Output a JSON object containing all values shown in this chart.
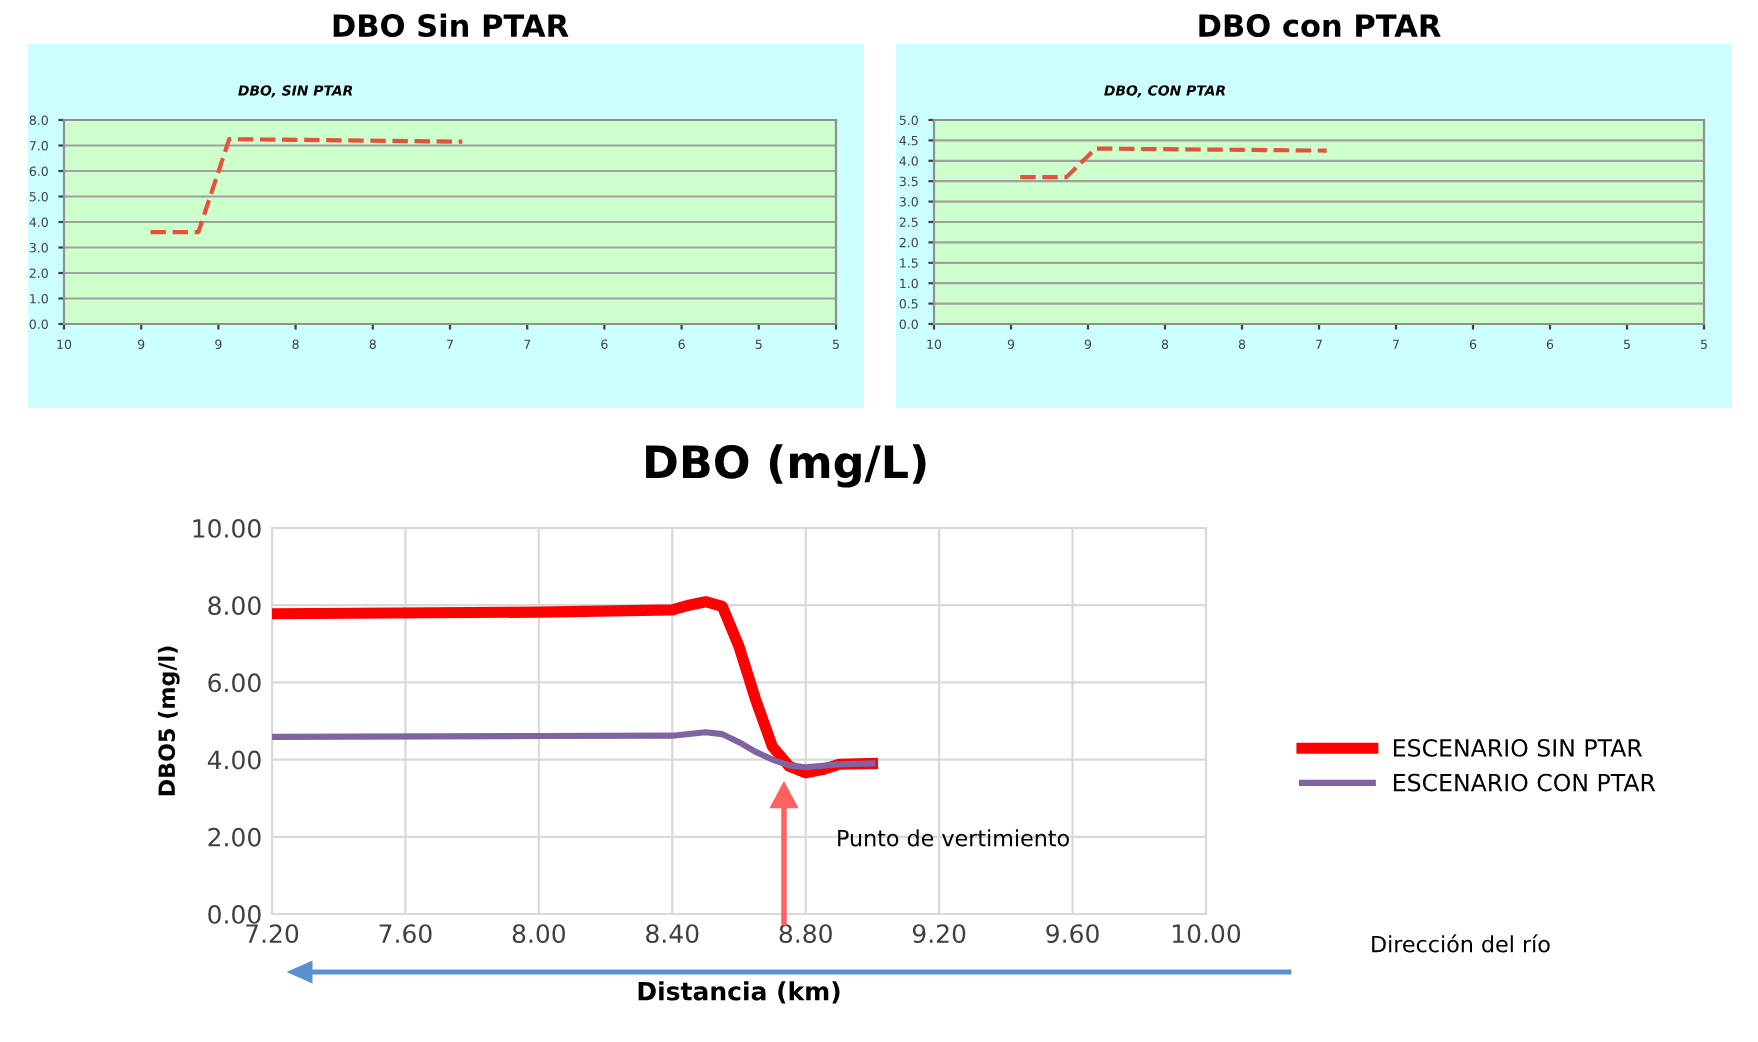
{
  "chart_data": [
    {
      "type": "line",
      "title": "DBO Sin PTAR",
      "subtitle": "DBO, SIN PTAR",
      "x": [
        9.44,
        9.13,
        8.93,
        7.42
      ],
      "series": [
        {
          "color": "#e8503a",
          "values": [
            3.6,
            3.6,
            7.25,
            7.15
          ]
        }
      ],
      "line_style": "dashed",
      "xlim": [
        10,
        5
      ],
      "xticks": [
        10,
        {
          "value": 9.5,
          "label": "9"
        },
        9,
        {
          "value": 8.5,
          "label": "8"
        },
        8,
        {
          "value": 7.5,
          "label": "7"
        },
        7,
        {
          "value": 6.5,
          "label": "6"
        },
        6,
        {
          "value": 5.5,
          "label": "5"
        },
        5
      ],
      "ylim": [
        0,
        8
      ],
      "yticks": [
        {
          "value": 0,
          "label": "0.0"
        },
        {
          "value": 1,
          "label": "1.0"
        },
        {
          "value": 2,
          "label": "2.0"
        },
        {
          "value": 3,
          "label": "3.0"
        },
        {
          "value": 4,
          "label": "4.0"
        },
        {
          "value": 5,
          "label": "5.0"
        },
        {
          "value": 6,
          "label": "6.0"
        },
        {
          "value": 7,
          "label": "7.0"
        },
        {
          "value": 8,
          "label": "8.0"
        }
      ],
      "grid": "y"
    },
    {
      "type": "line",
      "title": "DBO con PTAR",
      "subtitle": "DBO, CON PTAR",
      "x": [
        9.44,
        9.14,
        8.95,
        7.45
      ],
      "series": [
        {
          "color": "#e8503a",
          "values": [
            3.6,
            3.6,
            4.3,
            4.25
          ]
        }
      ],
      "line_style": "dashed",
      "xlim": [
        10,
        5
      ],
      "xticks": [
        10,
        {
          "value": 9.5,
          "label": "9"
        },
        9,
        {
          "value": 8.5,
          "label": "8"
        },
        8,
        {
          "value": 7.5,
          "label": "7"
        },
        7,
        {
          "value": 6.5,
          "label": "6"
        },
        6,
        {
          "value": 5.5,
          "label": "5"
        },
        5
      ],
      "ylim": [
        0,
        5
      ],
      "yticks": [
        {
          "value": 0,
          "label": "0.0"
        },
        {
          "value": 0.5,
          "label": "0.5"
        },
        {
          "value": 1,
          "label": "1.0"
        },
        {
          "value": 1.5,
          "label": "1.5"
        },
        {
          "value": 2,
          "label": "2.0"
        },
        {
          "value": 2.5,
          "label": "2.5"
        },
        {
          "value": 3,
          "label": "3.0"
        },
        {
          "value": 3.5,
          "label": "3.5"
        },
        {
          "value": 4,
          "label": "4.0"
        },
        {
          "value": 4.5,
          "label": "4.5"
        },
        {
          "value": 5,
          "label": "5.0"
        }
      ],
      "grid": "y"
    },
    {
      "type": "line",
      "title": "DBO (mg/L)",
      "xlabel": "Distancia (km)",
      "ylabel": "DBO5 (mg/l)",
      "series": [
        {
          "name": "ESCENARIO SIN PTAR",
          "color": "#ff0000",
          "x": [
            7.2,
            8.0,
            8.4,
            8.45,
            8.5,
            8.55,
            8.6,
            8.65,
            8.7,
            8.75,
            8.8,
            8.85,
            8.9,
            9.0
          ],
          "values": [
            7.78,
            7.82,
            7.88,
            8.0,
            8.09,
            7.97,
            6.93,
            5.55,
            4.34,
            3.83,
            3.66,
            3.74,
            3.88,
            3.9
          ]
        },
        {
          "name": "ESCENARIO CON PTAR",
          "color": "#8064a2",
          "x": [
            7.2,
            8.0,
            8.4,
            8.5,
            8.55,
            8.6,
            8.65,
            8.7,
            8.75,
            8.8,
            8.9,
            9.0
          ],
          "values": [
            4.59,
            4.61,
            4.62,
            4.71,
            4.66,
            4.45,
            4.2,
            4.0,
            3.85,
            3.8,
            3.88,
            3.9
          ]
        }
      ],
      "xlim": [
        7.2,
        10.0
      ],
      "xticks": [
        {
          "value": 7.2,
          "label": "7.20"
        },
        {
          "value": 7.6,
          "label": "7.60"
        },
        {
          "value": 8.0,
          "label": "8.00"
        },
        {
          "value": 8.4,
          "label": "8.40"
        },
        {
          "value": 8.8,
          "label": "8.80"
        },
        {
          "value": 9.2,
          "label": "9.20"
        },
        {
          "value": 9.6,
          "label": "9.60"
        },
        {
          "value": 10.0,
          "label": "10.00"
        }
      ],
      "ylim": [
        0,
        10
      ],
      "yticks": [
        {
          "value": 0,
          "label": "0.00"
        },
        {
          "value": 2,
          "label": "2.00"
        },
        {
          "value": 4,
          "label": "4.00"
        },
        {
          "value": 6,
          "label": "6.00"
        },
        {
          "value": 8,
          "label": "8.00"
        },
        {
          "value": 10,
          "label": "10.00"
        }
      ],
      "grid": true,
      "legend": "right",
      "annotations": [
        "Punto de vertimiento",
        "Dirección del río"
      ]
    }
  ]
}
